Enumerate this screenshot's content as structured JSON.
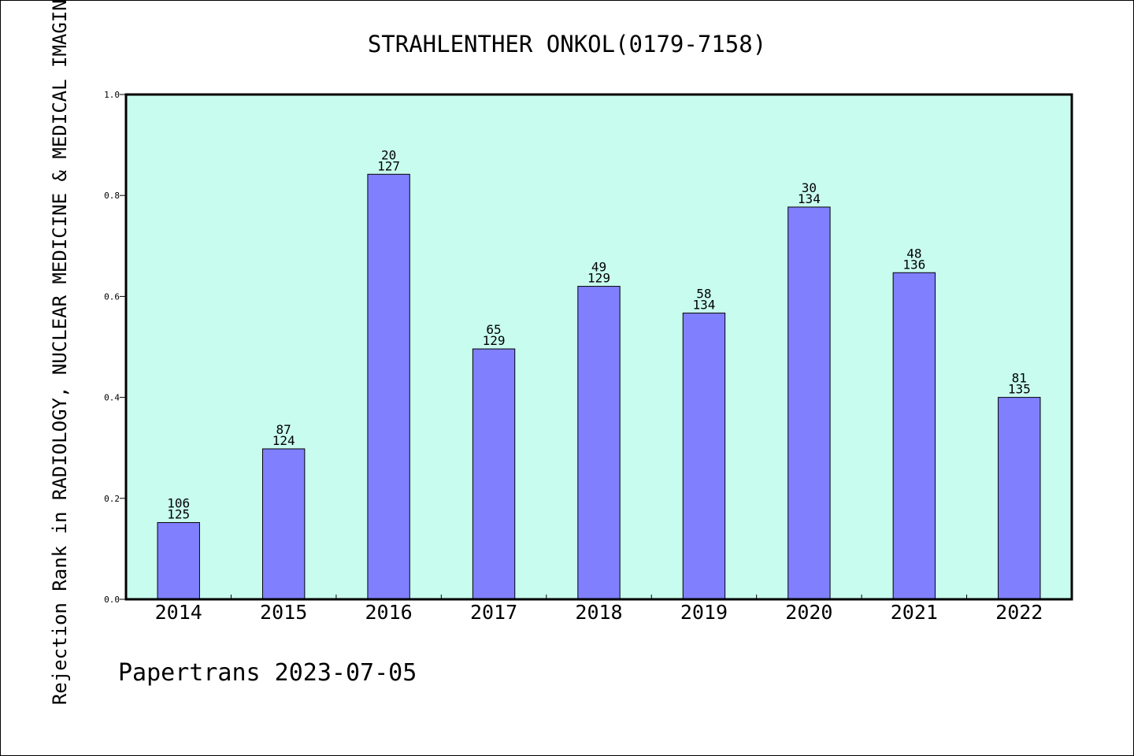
{
  "chart_data": {
    "type": "bar",
    "title": "STRAHLENTHER ONKOL(0179-7158)",
    "ylabel": "Rejection Rank in RADIOLOGY, NUCLEAR MEDICINE & MEDICAL IMAGING",
    "xlabel": "",
    "footer": "Papertrans 2023-07-05",
    "categories": [
      "2014",
      "2015",
      "2016",
      "2017",
      "2018",
      "2019",
      "2020",
      "2021",
      "2022"
    ],
    "values": [
      0.152,
      0.298,
      0.842,
      0.496,
      0.62,
      0.567,
      0.777,
      0.647,
      0.4
    ],
    "label_top": [
      "106",
      "87",
      "20",
      "65",
      "49",
      "58",
      "30",
      "48",
      "81"
    ],
    "label_bottom": [
      "125",
      "124",
      "127",
      "129",
      "129",
      "134",
      "134",
      "136",
      "135"
    ],
    "ylim": [
      0,
      1.0
    ],
    "yticks": [
      "0.0",
      "0.2",
      "0.4",
      "0.6",
      "0.8",
      "1.0"
    ],
    "grid": false,
    "colors": {
      "plot_background": "#c8fcee",
      "bar_fill": "#8080ff",
      "bar_stroke": "#000000"
    }
  }
}
